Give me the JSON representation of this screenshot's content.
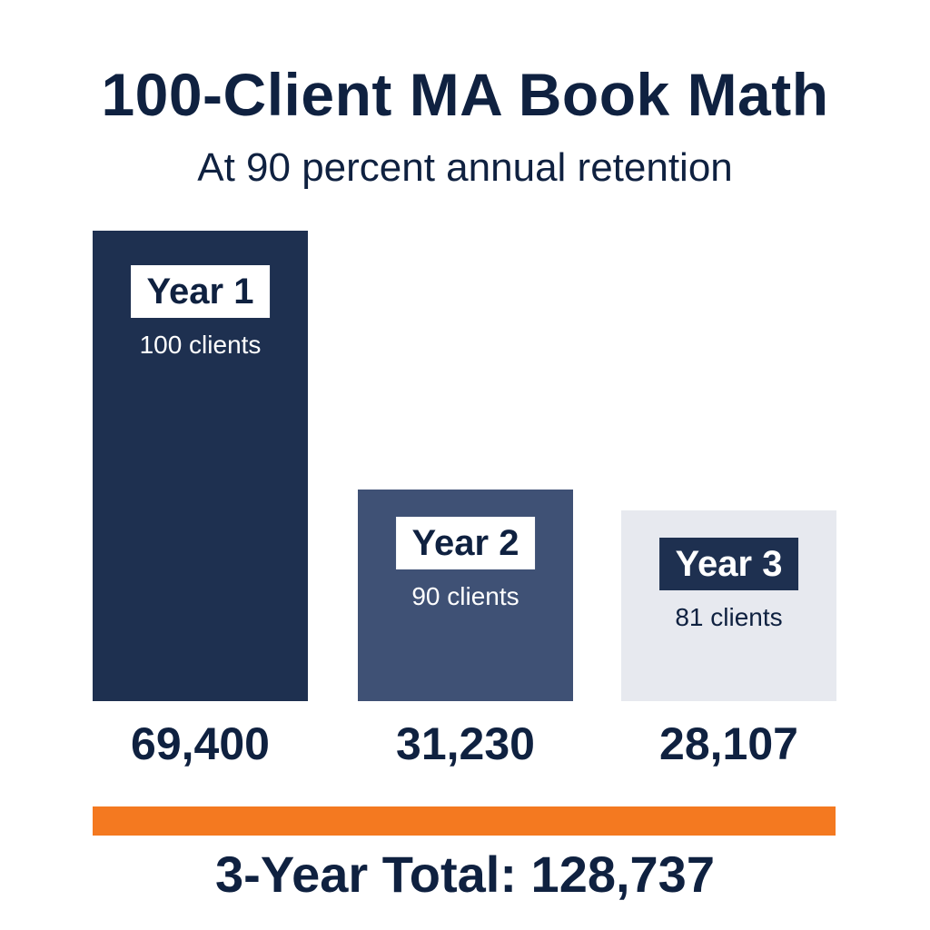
{
  "title": "100-Client MA Book Math",
  "subtitle": "At 90 percent annual retention",
  "colors": {
    "year1": "#1e3050",
    "year2": "#3f5175",
    "year3": "#e7e9ef",
    "accent": "#f47920",
    "text": "#0f2140"
  },
  "chart_data": {
    "type": "bar",
    "categories": [
      "Year 1",
      "Year 2",
      "Year 3"
    ],
    "values": [
      69400,
      31230,
      28107
    ],
    "value_labels": [
      "69,400",
      "31,230",
      "28,107"
    ],
    "clients": [
      "100 clients",
      "90 clients",
      "81 clients"
    ],
    "title": "100-Client MA Book Math",
    "subtitle": "At 90 percent annual retention",
    "ylim": [
      0,
      69400
    ],
    "grid": false,
    "total_label": "3-Year Total: 128,737",
    "total_value": 128737
  }
}
